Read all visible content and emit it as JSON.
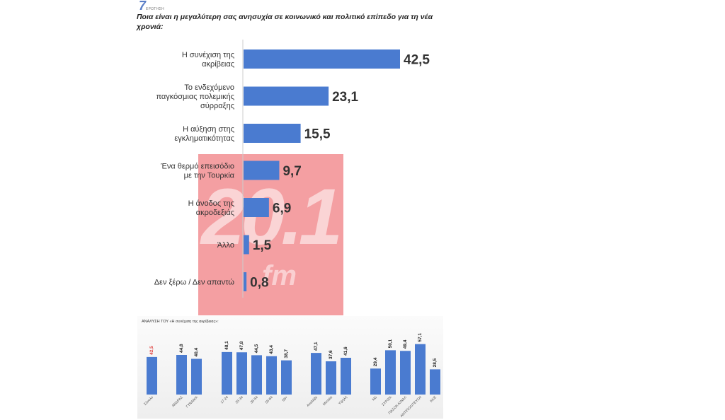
{
  "brand": {
    "logo_mark": "7",
    "logo_sub": "ΕΡΩΤΗΣΗ"
  },
  "question": "Ποια είναι η μεγαλύτερη σας ανησυχία σε κοινωνικό και πολιτικό επίπεδο για τη νέα χρονιά:",
  "watermark": {
    "text": "20.1",
    "sub": "fm"
  },
  "colors": {
    "bar": "#4a7bd0",
    "highlight": "#e0403e",
    "watermark": "#eb5055"
  },
  "chart_data": [
    {
      "type": "bar",
      "orientation": "horizontal",
      "title": "Ποια είναι η μεγαλύτερη σας ανησυχία σε κοινωνικό και πολιτικό επίπεδο για τη νέα χρονιά:",
      "categories": [
        [
          "Η συνέχιση της",
          "ακρίβειας"
        ],
        [
          "Το ενδεχόμενο",
          "παγκόσμιας πολεμικής",
          "σύρραξης"
        ],
        [
          "Η αύξηση  στης",
          "εγκληματικότητας"
        ],
        [
          "Ένα θερμό επεισόδιο",
          "με την Τουρκία"
        ],
        [
          "Η άνοδος της",
          "ακροδεξιάς"
        ],
        [
          "Άλλο"
        ],
        [
          "Δεν ξέρω / Δεν απαντώ"
        ]
      ],
      "values": [
        42.5,
        23.1,
        15.5,
        9.7,
        6.9,
        1.5,
        0.8
      ],
      "value_labels": [
        "42,5",
        "23,1",
        "15,5",
        "9,7",
        "6,9",
        "1,5",
        "0,8"
      ],
      "xlim": [
        0,
        42.5
      ],
      "grid": false,
      "legend": "none"
    },
    {
      "type": "bar",
      "title": "ΑΝΑΛΥΣΗ ΤΟΥ «Η συνέχιση της ακρίβειας»:",
      "categories": [
        "Σύνολο",
        "ΑΝΔΡΑΣ",
        "ΓΥΝΑΙΚΑ",
        "17-24",
        "25-34",
        "35-54",
        "55-64",
        "65+",
        "Αναλάβε",
        "Μεσαία",
        "Υψηλή",
        "ΝΔ",
        "ΣΥΡΙΖΑ",
        "ΠΑΣΟΚ-ΚΙΝΑΛ",
        "ΑΝΤΙΠΟΛΙΤΕΥΣΗ",
        "ΚΚΕ"
      ],
      "values": [
        42.5,
        44.8,
        40.4,
        48.1,
        47.8,
        44.5,
        43.4,
        38.7,
        47.1,
        37.6,
        41.6,
        29.4,
        50.1,
        49.4,
        57.1,
        28.5
      ],
      "value_labels": [
        "42,5",
        "44,8",
        "40,4",
        "48,1",
        "47,8",
        "44,5",
        "43,4",
        "38,7",
        "47,1",
        "37,6",
        "41,6",
        "29,4",
        "50,1",
        "49,4",
        "57,1",
        "28,5"
      ],
      "groups": [
        [
          0
        ],
        [
          1,
          2
        ],
        [
          3,
          4,
          5,
          6,
          7
        ],
        [
          8,
          9,
          10
        ],
        [
          11,
          12,
          13,
          14,
          15
        ]
      ],
      "highlight_index": 0,
      "ylim": [
        0,
        60
      ],
      "grid": false,
      "legend": "none"
    }
  ]
}
